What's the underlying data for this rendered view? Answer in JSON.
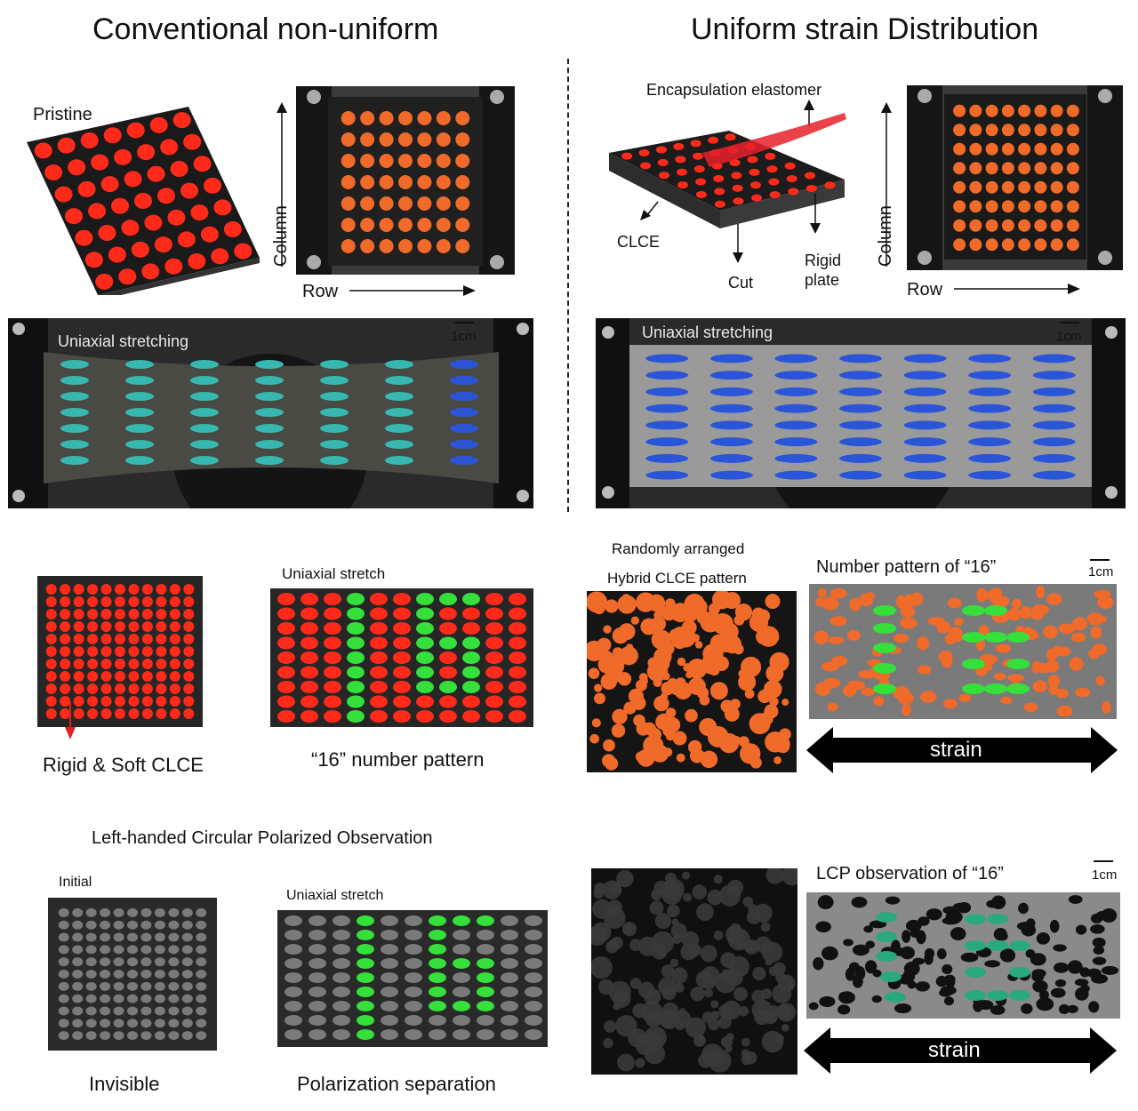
{
  "titles": {
    "left": "Conventional non-uniform",
    "right": "Uniform strain Distribution"
  },
  "left_top": {
    "pristine_label": "Pristine",
    "column_label": "Column",
    "row_label": "Row",
    "stretch_label": "Uniaxial  stretching",
    "scale_label": "1cm"
  },
  "right_top": {
    "encapsulation_label": "Encapsulation elastomer",
    "clce_label": "CLCE",
    "cut_label": "Cut",
    "rigid_plate_label_1": "Rigid",
    "rigid_plate_label_2": "plate",
    "column_label": "Column",
    "row_label": "Row",
    "stretch_label": "Uniaxial  stretching",
    "scale_label": "1cm"
  },
  "middle_left": {
    "stretch_label": "Uniaxial stretch",
    "rigid_soft_label": "Rigid & Soft CLCE",
    "number_pattern_label": "“16” number pattern"
  },
  "middle_right": {
    "random_label_1": "Randomly arranged",
    "random_label_2": "Hybrid CLCE pattern",
    "number_title": "Number pattern of “16”",
    "scale_label": "1cm",
    "strain_label": "strain"
  },
  "bottom_left": {
    "section_title": "Left-handed Circular Polarized Observation",
    "initial_label": "Initial",
    "stretch_label": "Uniaxial stretch",
    "invisible_label": "Invisible",
    "separation_label": "Polarization separation"
  },
  "bottom_right": {
    "lcp_title": "LCP observation  of  “16”",
    "scale_label": "1cm",
    "strain_label": "strain"
  },
  "colors": {
    "red_dot": "#ff2a1a",
    "orange_dot": "#f06a2a",
    "green_dot": "#35e03a",
    "blue_dot": "#2a55d8",
    "teal_dot": "#36b8b0",
    "grey_dot": "#7a7a7a"
  }
}
